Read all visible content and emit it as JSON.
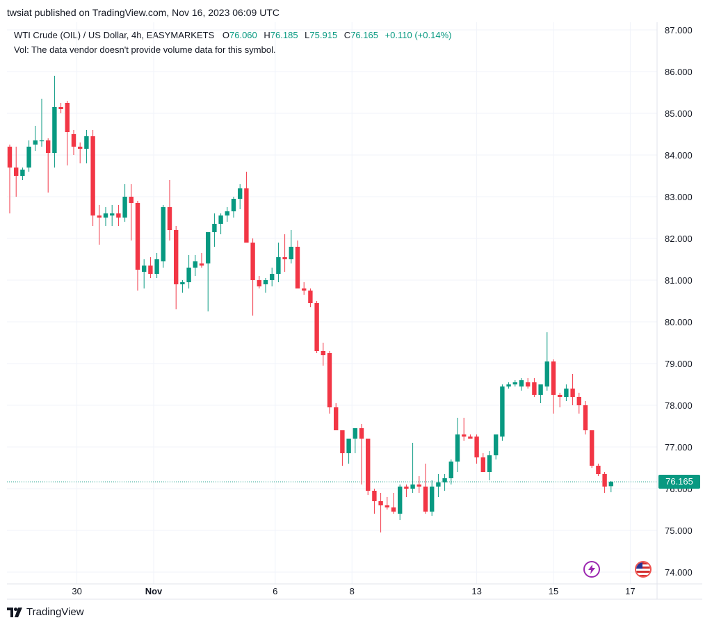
{
  "header": {
    "published": "twsiat published on TradingView.com, Nov 16, 2023 06:09 UTC"
  },
  "legend": {
    "symbol": "WTI Crude (OIL) / US Dollar, 4h, EASYMARKETS",
    "o_label": "O",
    "o_value": "76.060",
    "h_label": "H",
    "h_value": "76.185",
    "l_label": "L",
    "l_value": "75.915",
    "c_label": "C",
    "c_value": "76.165",
    "change": "+0.110 (+0.14%)",
    "vol": "Vol: The data vendor doesn't provide volume data for this symbol."
  },
  "last_price": {
    "label": "76.165",
    "value": 76.165
  },
  "footer": {
    "brand": "TradingView"
  },
  "colors": {
    "up": "#089981",
    "down": "#f23645",
    "grid": "#f0f3fa",
    "last_line": "#089981"
  },
  "icons": [
    "lightning-icon",
    "us-flag-icon",
    "tradingview-logo-icon"
  ],
  "chart_data": {
    "type": "candlestick",
    "ylim": [
      73.7,
      87.3
    ],
    "y_ticks": [
      {
        "value": 87,
        "label": "87.000"
      },
      {
        "value": 86,
        "label": "86.000"
      },
      {
        "value": 85,
        "label": "85.000"
      },
      {
        "value": 84,
        "label": "84.000"
      },
      {
        "value": 83,
        "label": "83.000"
      },
      {
        "value": 82,
        "label": "82.000"
      },
      {
        "value": 81,
        "label": "81.000"
      },
      {
        "value": 80,
        "label": "80.000"
      },
      {
        "value": 79,
        "label": "79.000"
      },
      {
        "value": 78,
        "label": "78.000"
      },
      {
        "value": 77,
        "label": "77.000"
      },
      {
        "value": 76,
        "label": "76.000"
      },
      {
        "value": 75,
        "label": "75.000"
      },
      {
        "value": 74,
        "label": "74.000"
      }
    ],
    "x_ticks": [
      {
        "index": 10.5,
        "label": "30",
        "bold": false
      },
      {
        "index": 22.5,
        "label": "Nov",
        "bold": true
      },
      {
        "index": 41.5,
        "label": "6",
        "bold": false
      },
      {
        "index": 53.5,
        "label": "8",
        "bold": false
      },
      {
        "index": 73,
        "label": "13",
        "bold": false
      },
      {
        "index": 85,
        "label": "15",
        "bold": false
      },
      {
        "index": 97,
        "label": "17",
        "bold": false
      }
    ],
    "candles": [
      [
        84.2,
        84.25,
        82.6,
        83.7
      ],
      [
        83.7,
        84.2,
        83.0,
        83.5
      ],
      [
        83.5,
        83.7,
        83.4,
        83.65
      ],
      [
        83.7,
        84.35,
        83.6,
        84.2
      ],
      [
        84.25,
        84.7,
        84.1,
        84.35
      ],
      [
        84.35,
        85.35,
        84.2,
        84.35
      ],
      [
        84.35,
        84.4,
        83.1,
        84.05
      ],
      [
        84.05,
        85.9,
        83.7,
        85.15
      ],
      [
        85.15,
        85.25,
        85.0,
        85.1
      ],
      [
        85.25,
        85.3,
        83.75,
        84.55
      ],
      [
        84.5,
        84.6,
        84.0,
        84.2
      ],
      [
        84.2,
        84.3,
        83.8,
        84.15
      ],
      [
        84.15,
        84.6,
        83.8,
        84.45
      ],
      [
        84.45,
        84.6,
        82.3,
        82.55
      ],
      [
        82.55,
        82.8,
        81.85,
        82.5
      ],
      [
        82.5,
        82.75,
        82.3,
        82.6
      ],
      [
        82.55,
        82.8,
        82.3,
        82.6
      ],
      [
        82.6,
        82.8,
        82.3,
        82.5
      ],
      [
        82.5,
        83.3,
        82.4,
        83.0
      ],
      [
        83.0,
        83.3,
        81.95,
        82.85
      ],
      [
        82.85,
        82.9,
        80.75,
        81.25
      ],
      [
        81.2,
        81.5,
        80.8,
        81.35
      ],
      [
        81.35,
        81.55,
        81.05,
        81.15
      ],
      [
        81.15,
        81.65,
        81.05,
        81.5
      ],
      [
        81.45,
        82.8,
        81.3,
        82.75
      ],
      [
        82.75,
        83.4,
        81.95,
        82.2
      ],
      [
        82.2,
        82.3,
        80.3,
        80.9
      ],
      [
        80.9,
        81.0,
        80.7,
        80.95
      ],
      [
        80.95,
        81.6,
        80.8,
        81.3
      ],
      [
        81.3,
        81.6,
        81.1,
        81.45
      ],
      [
        81.4,
        81.65,
        81.3,
        81.35
      ],
      [
        81.4,
        82.15,
        80.25,
        82.15
      ],
      [
        82.15,
        82.6,
        81.8,
        82.35
      ],
      [
        82.35,
        82.6,
        82.1,
        82.55
      ],
      [
        82.55,
        82.75,
        82.4,
        82.65
      ],
      [
        82.65,
        83.0,
        82.5,
        82.95
      ],
      [
        82.95,
        83.3,
        82.7,
        83.2
      ],
      [
        83.2,
        83.6,
        81.9,
        81.9
      ],
      [
        81.9,
        82.0,
        80.15,
        81.0
      ],
      [
        81.0,
        81.1,
        80.8,
        80.85
      ],
      [
        80.9,
        81.05,
        80.7,
        81.0
      ],
      [
        81.0,
        81.3,
        80.85,
        81.15
      ],
      [
        81.15,
        81.9,
        80.95,
        81.55
      ],
      [
        81.55,
        82.1,
        81.2,
        81.5
      ],
      [
        81.5,
        82.2,
        81.4,
        81.8
      ],
      [
        81.8,
        81.95,
        80.85,
        80.8
      ],
      [
        80.8,
        80.95,
        80.65,
        80.75
      ],
      [
        80.75,
        80.8,
        80.35,
        80.45
      ],
      [
        80.45,
        80.5,
        79.25,
        79.3
      ],
      [
        79.3,
        79.5,
        78.95,
        79.2
      ],
      [
        79.25,
        79.3,
        77.8,
        77.95
      ],
      [
        77.95,
        78.05,
        77.4,
        77.4
      ],
      [
        77.4,
        77.4,
        76.55,
        76.85
      ],
      [
        76.85,
        77.2,
        76.6,
        77.2
      ],
      [
        77.2,
        77.45,
        76.85,
        77.45
      ],
      [
        77.45,
        77.55,
        76.1,
        77.2
      ],
      [
        77.2,
        77.2,
        75.85,
        75.95
      ],
      [
        75.95,
        76.0,
        75.4,
        75.7
      ],
      [
        75.7,
        75.9,
        74.95,
        75.6
      ],
      [
        75.6,
        75.8,
        75.5,
        75.55
      ],
      [
        75.55,
        75.9,
        75.4,
        75.45
      ],
      [
        75.4,
        76.1,
        75.25,
        76.05
      ],
      [
        76.05,
        76.1,
        75.8,
        76.0
      ],
      [
        76.0,
        77.1,
        75.9,
        76.1
      ],
      [
        76.1,
        76.3,
        75.9,
        76.05
      ],
      [
        76.05,
        76.6,
        75.4,
        75.45
      ],
      [
        75.45,
        76.2,
        75.35,
        76.05
      ],
      [
        76.05,
        76.35,
        75.8,
        76.15
      ],
      [
        76.15,
        76.35,
        75.95,
        76.25
      ],
      [
        76.25,
        76.7,
        76.1,
        76.65
      ],
      [
        76.65,
        77.7,
        76.4,
        77.3
      ],
      [
        77.3,
        77.7,
        77.15,
        77.25
      ],
      [
        77.25,
        77.3,
        77.2,
        77.2
      ],
      [
        77.25,
        77.3,
        76.6,
        76.75
      ],
      [
        76.75,
        76.85,
        76.5,
        76.4
      ],
      [
        76.4,
        76.9,
        76.2,
        76.8
      ],
      [
        76.8,
        77.2,
        76.7,
        77.3
      ],
      [
        77.25,
        78.5,
        77.15,
        78.45
      ],
      [
        78.45,
        78.55,
        78.4,
        78.5
      ],
      [
        78.5,
        78.6,
        78.45,
        78.55
      ],
      [
        78.45,
        78.65,
        78.35,
        78.6
      ],
      [
        78.55,
        78.65,
        78.4,
        78.45
      ],
      [
        78.55,
        78.65,
        78.2,
        78.25
      ],
      [
        78.25,
        78.45,
        78.05,
        78.5
      ],
      [
        78.45,
        79.75,
        78.35,
        79.05
      ],
      [
        79.05,
        79.1,
        77.8,
        78.25
      ],
      [
        78.25,
        78.3,
        77.95,
        78.2
      ],
      [
        78.2,
        78.5,
        78.1,
        78.4
      ],
      [
        78.4,
        78.75,
        78.0,
        78.2
      ],
      [
        78.2,
        78.3,
        77.8,
        78.0
      ],
      [
        78.0,
        78.1,
        77.3,
        77.4
      ],
      [
        77.4,
        77.4,
        76.5,
        76.55
      ],
      [
        76.55,
        76.6,
        76.3,
        76.35
      ],
      [
        76.35,
        76.4,
        75.9,
        76.05
      ],
      [
        76.06,
        76.185,
        75.915,
        76.165
      ]
    ]
  }
}
